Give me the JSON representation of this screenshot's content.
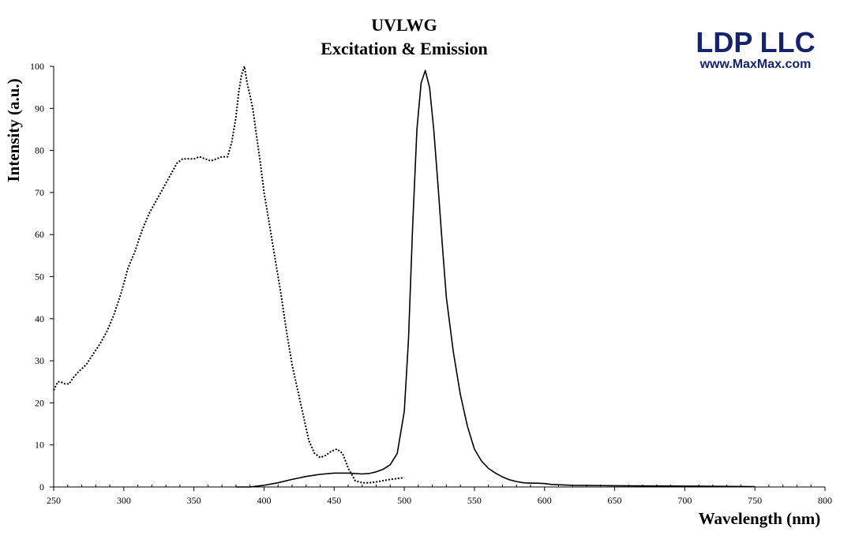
{
  "brand": {
    "name": "LDP LLC",
    "url": "www.MaxMax.com",
    "color": "#14236b"
  },
  "chart_data": {
    "type": "line",
    "title": "UVLWG",
    "subtitle": "Excitation & Emission",
    "xlabel": "Wavelength (nm)",
    "ylabel": "Intensity (a.u.)",
    "xlim": [
      250,
      800
    ],
    "ylim": [
      0,
      100
    ],
    "x_ticks": [
      250,
      300,
      350,
      400,
      450,
      500,
      550,
      600,
      650,
      700,
      750,
      800
    ],
    "y_ticks": [
      0,
      10,
      20,
      30,
      40,
      50,
      60,
      70,
      80,
      90,
      100
    ],
    "grid": false,
    "legend": "none",
    "series": [
      {
        "style": "dotted",
        "color": "#000000",
        "x": [
          250,
          253,
          255,
          258,
          261,
          264,
          268,
          273,
          278,
          283,
          288,
          293,
          298,
          303,
          308,
          313,
          318,
          323,
          328,
          333,
          338,
          342,
          346,
          350,
          354,
          358,
          362,
          366,
          370,
          374,
          377,
          380,
          382,
          384,
          386,
          388,
          390,
          392,
          394,
          397,
          400,
          404,
          408,
          412,
          416,
          420,
          424,
          428,
          432,
          436,
          440,
          444,
          448,
          452,
          456,
          460,
          465,
          470,
          475,
          480,
          485,
          490,
          495,
          500
        ],
        "y": [
          23,
          25,
          25,
          24.5,
          24.5,
          26,
          27.5,
          29,
          31.5,
          34,
          37,
          41,
          46,
          52,
          56,
          61,
          65,
          68,
          71,
          74,
          77,
          78,
          78,
          78,
          78.5,
          78,
          77.5,
          78,
          78.5,
          78.5,
          82,
          88,
          94,
          98,
          100,
          96,
          93,
          90,
          85,
          78,
          70,
          62,
          54,
          46,
          37,
          29,
          23,
          17,
          11,
          8,
          7,
          7.5,
          8.5,
          9,
          8,
          4.5,
          1.5,
          1.0,
          1.0,
          1.2,
          1.5,
          1.8,
          2.0,
          2.2
        ]
      },
      {
        "style": "solid",
        "color": "#000000",
        "x": [
          380,
          390,
          395,
          400,
          410,
          420,
          430,
          440,
          450,
          460,
          470,
          475,
          480,
          485,
          490,
          495,
          500,
          503,
          506,
          509,
          512,
          515,
          518,
          521,
          524,
          527,
          530,
          535,
          540,
          545,
          550,
          555,
          560,
          565,
          570,
          575,
          580,
          585,
          590,
          595,
          600,
          605,
          620,
          650,
          700,
          750
        ],
        "y": [
          0,
          0,
          0.2,
          0.4,
          1.0,
          1.8,
          2.5,
          3.0,
          3.3,
          3.3,
          3.1,
          3.2,
          3.6,
          4.2,
          5.3,
          8.0,
          18.0,
          35.0,
          62.0,
          85.0,
          96.0,
          99.0,
          95.0,
          85.0,
          72.0,
          58.0,
          45.0,
          32.0,
          22.0,
          14.5,
          9.0,
          6.2,
          4.4,
          3.3,
          2.4,
          1.7,
          1.3,
          1.0,
          0.9,
          0.9,
          0.8,
          0.6,
          0.4,
          0.3,
          0.2,
          0.1
        ]
      }
    ]
  }
}
